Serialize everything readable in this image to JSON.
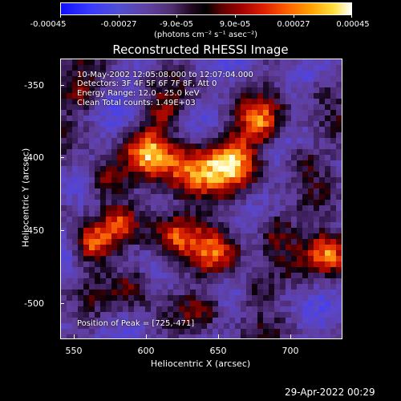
{
  "colorbar": {
    "tick_labels": [
      "-0.00045",
      "-0.00027",
      "-9.0e-05",
      "9.0e-05",
      "0.00027",
      "0.00045"
    ],
    "units": "(photons cm⁻² s⁻¹ asec⁻²)"
  },
  "title": "Reconstructed RHESSI Image",
  "info": {
    "time_range": "10-May-2002 12:05:08.000 to 12:07:04.000",
    "detectors": "Detectors: 3F 4F 5F 6F 7F 8F, Att 0",
    "energy_range": "Energy Range: 12.0 - 25.0 keV",
    "clean_counts": "Clean     Total counts: 1.49E+03",
    "peak_position": "Position of Peak = [725,-471]"
  },
  "axes": {
    "x_title": "Heliocentric X (arcsec)",
    "y_title": "Heliocentric Y (arcsec)",
    "x_ticks": [
      "550",
      "600",
      "650",
      "700"
    ],
    "y_ticks": [
      "-350",
      "-400",
      "-450",
      "-500"
    ],
    "x_range": [
      540,
      735
    ],
    "y_range": [
      -525,
      -330
    ]
  },
  "footer": {
    "timestamp": "29-Apr-2022 00:29"
  }
}
